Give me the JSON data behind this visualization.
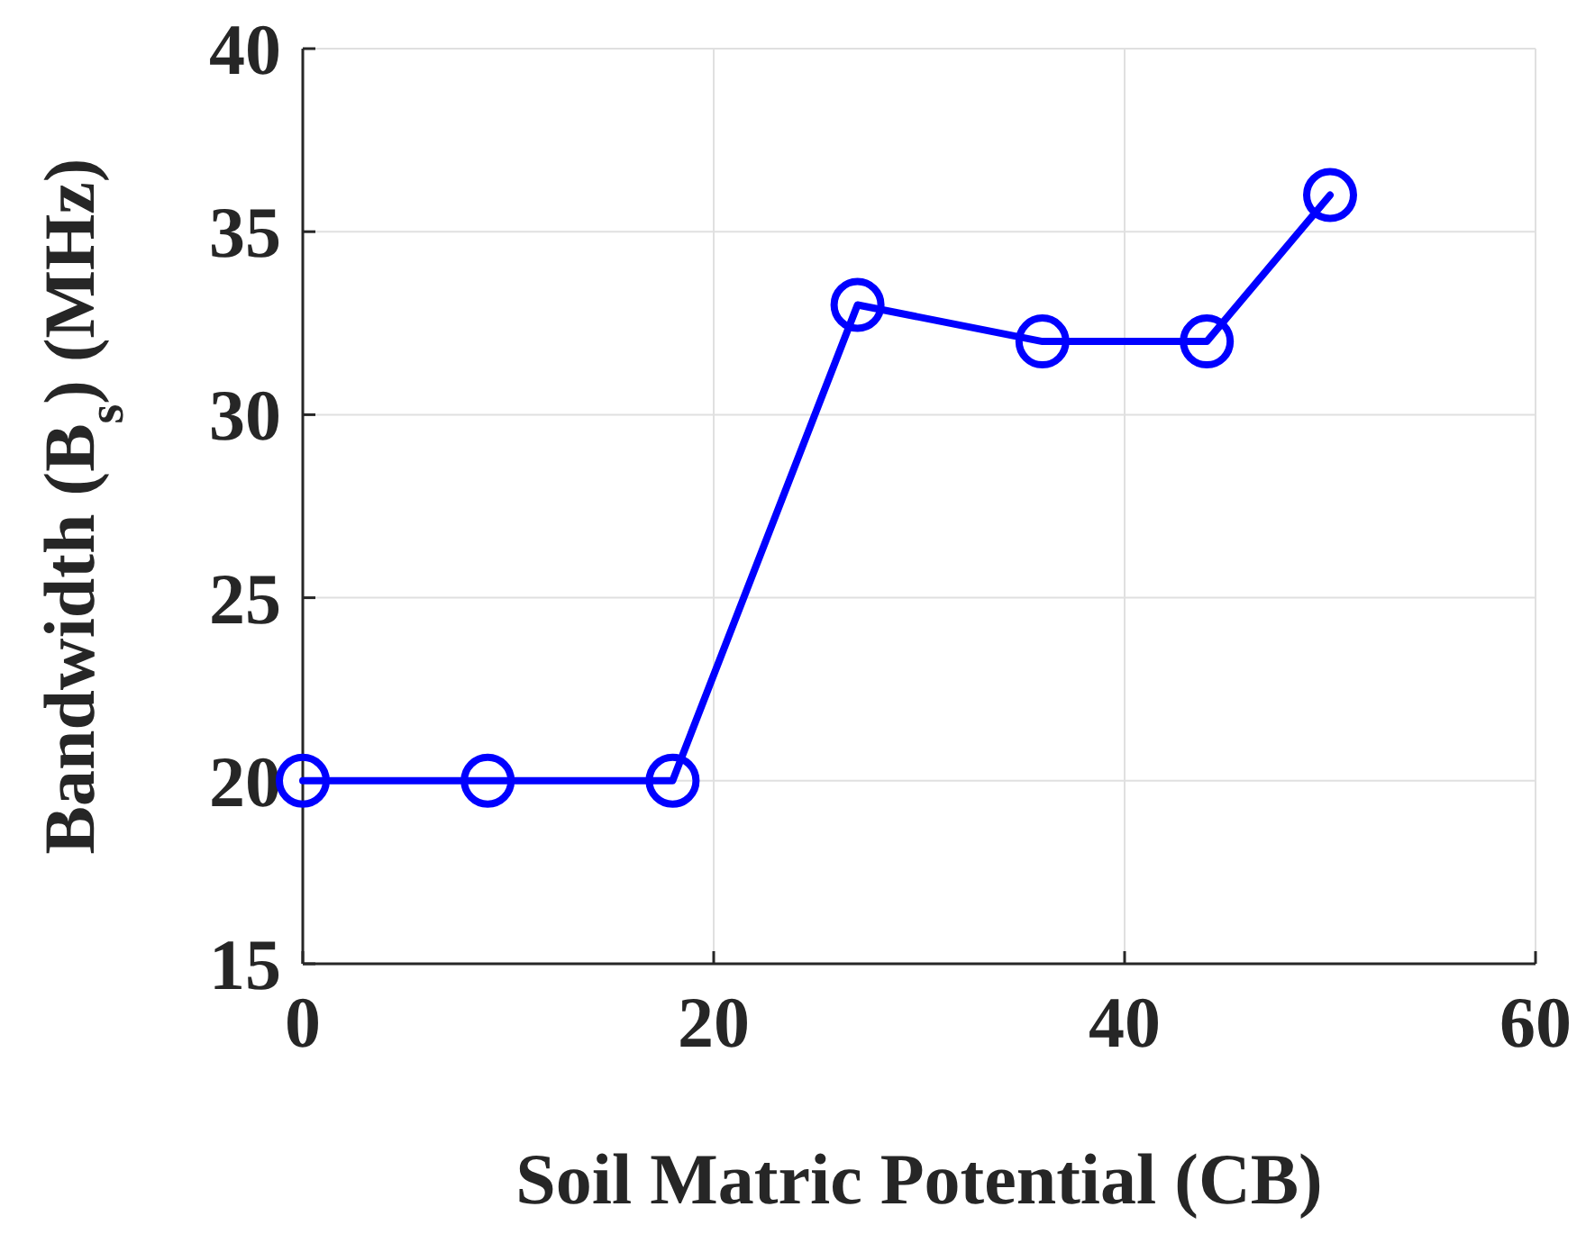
{
  "chart_data": {
    "type": "line",
    "xlabel": "Soil Matric Potential (CB)",
    "ylabel": "Bandwidth (B$_{s}$) (MHz)",
    "x": [
      0,
      9,
      18,
      27,
      36,
      44,
      50
    ],
    "series": [
      {
        "color": "#0000ff",
        "values": [
          20,
          20,
          20,
          33,
          32,
          32,
          36
        ]
      }
    ],
    "xlim": [
      0,
      60
    ],
    "xticks": [
      0,
      20,
      40,
      60
    ],
    "ylim": [
      15,
      40
    ],
    "yticks": [
      15,
      20,
      25,
      30,
      35,
      40
    ],
    "grid": true,
    "marker": "circle",
    "line_style": "solid"
  }
}
